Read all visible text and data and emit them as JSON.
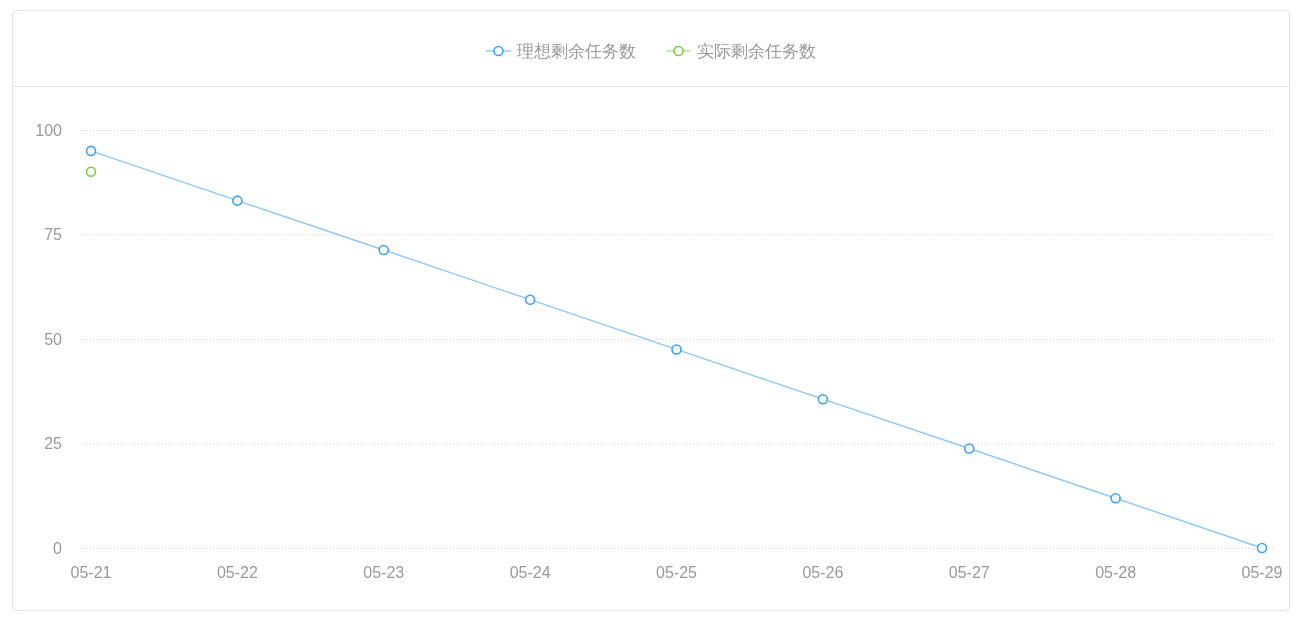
{
  "chart_data": {
    "type": "line",
    "categories": [
      "05-21",
      "05-22",
      "05-23",
      "05-24",
      "05-25",
      "05-26",
      "05-27",
      "05-28",
      "05-29"
    ],
    "series": [
      {
        "name": "理想剩余任务数",
        "color": "#3da2f8",
        "values": [
          95,
          83.1,
          71.3,
          59.4,
          47.5,
          35.6,
          23.8,
          11.9,
          0
        ]
      },
      {
        "name": "实际剩余任务数",
        "color": "#7cc94d",
        "values": [
          90,
          null,
          null,
          null,
          null,
          null,
          null,
          null,
          null
        ]
      }
    ],
    "ylim": [
      0,
      100
    ],
    "yticks": [
      0,
      25,
      50,
      75,
      100
    ],
    "grid": "y",
    "legend": "top",
    "marker": "circle",
    "line_style": "solid"
  }
}
